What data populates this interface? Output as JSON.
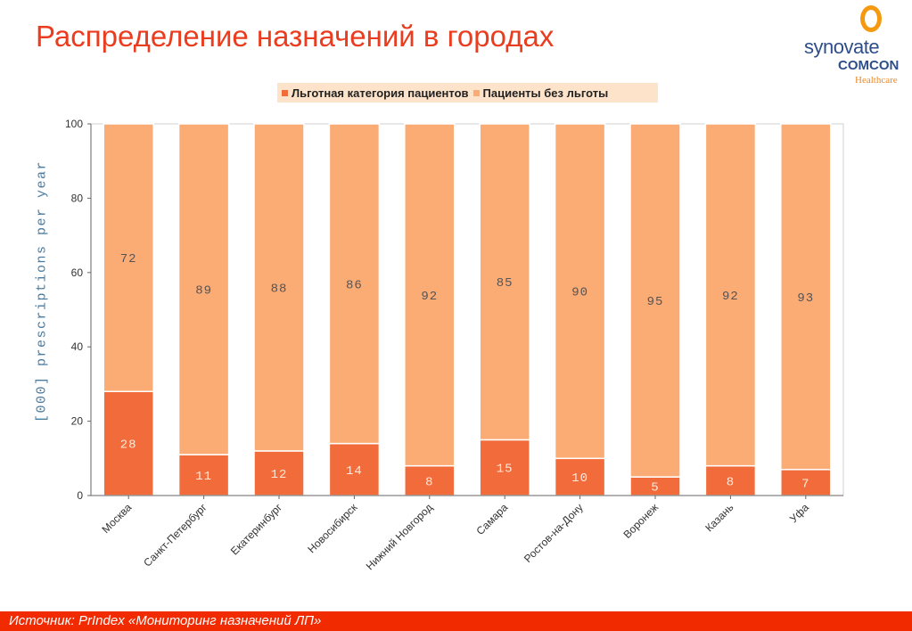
{
  "title": "Распределение назначений в городах",
  "logo": {
    "line1": "synovate",
    "line2": "COMCON",
    "line3": "Healthcare"
  },
  "footer": {
    "source": "Источник:  PrIndex «Мониторинг назначений ЛП»"
  },
  "colors": {
    "privileged": "#f26b3a",
    "non_privileged": "#fbab74",
    "title": "#ea3c1e",
    "footer": "#f22a00"
  },
  "chart_data": {
    "type": "bar",
    "stacked": true,
    "ylabel": "[000] prescriptions per year",
    "ylim": [
      0,
      100
    ],
    "yticks": [
      0,
      20,
      40,
      60,
      80,
      100
    ],
    "grid": false,
    "legend_position": "top",
    "categories": [
      "Москва",
      "Санкт-Петербург",
      "Екатеринбург",
      "Новосибирск",
      "Нижний Новгород",
      "Самара",
      "Ростов-на-Дону",
      "Воронеж",
      "Казань",
      "Уфа"
    ],
    "series": [
      {
        "name": "Льготная категория пациентов",
        "values": [
          28,
          11,
          12,
          14,
          8,
          15,
          10,
          5,
          8,
          7
        ]
      },
      {
        "name": "Пациенты без льготы",
        "values": [
          72,
          89,
          88,
          86,
          92,
          85,
          90,
          95,
          92,
          93
        ]
      }
    ]
  }
}
